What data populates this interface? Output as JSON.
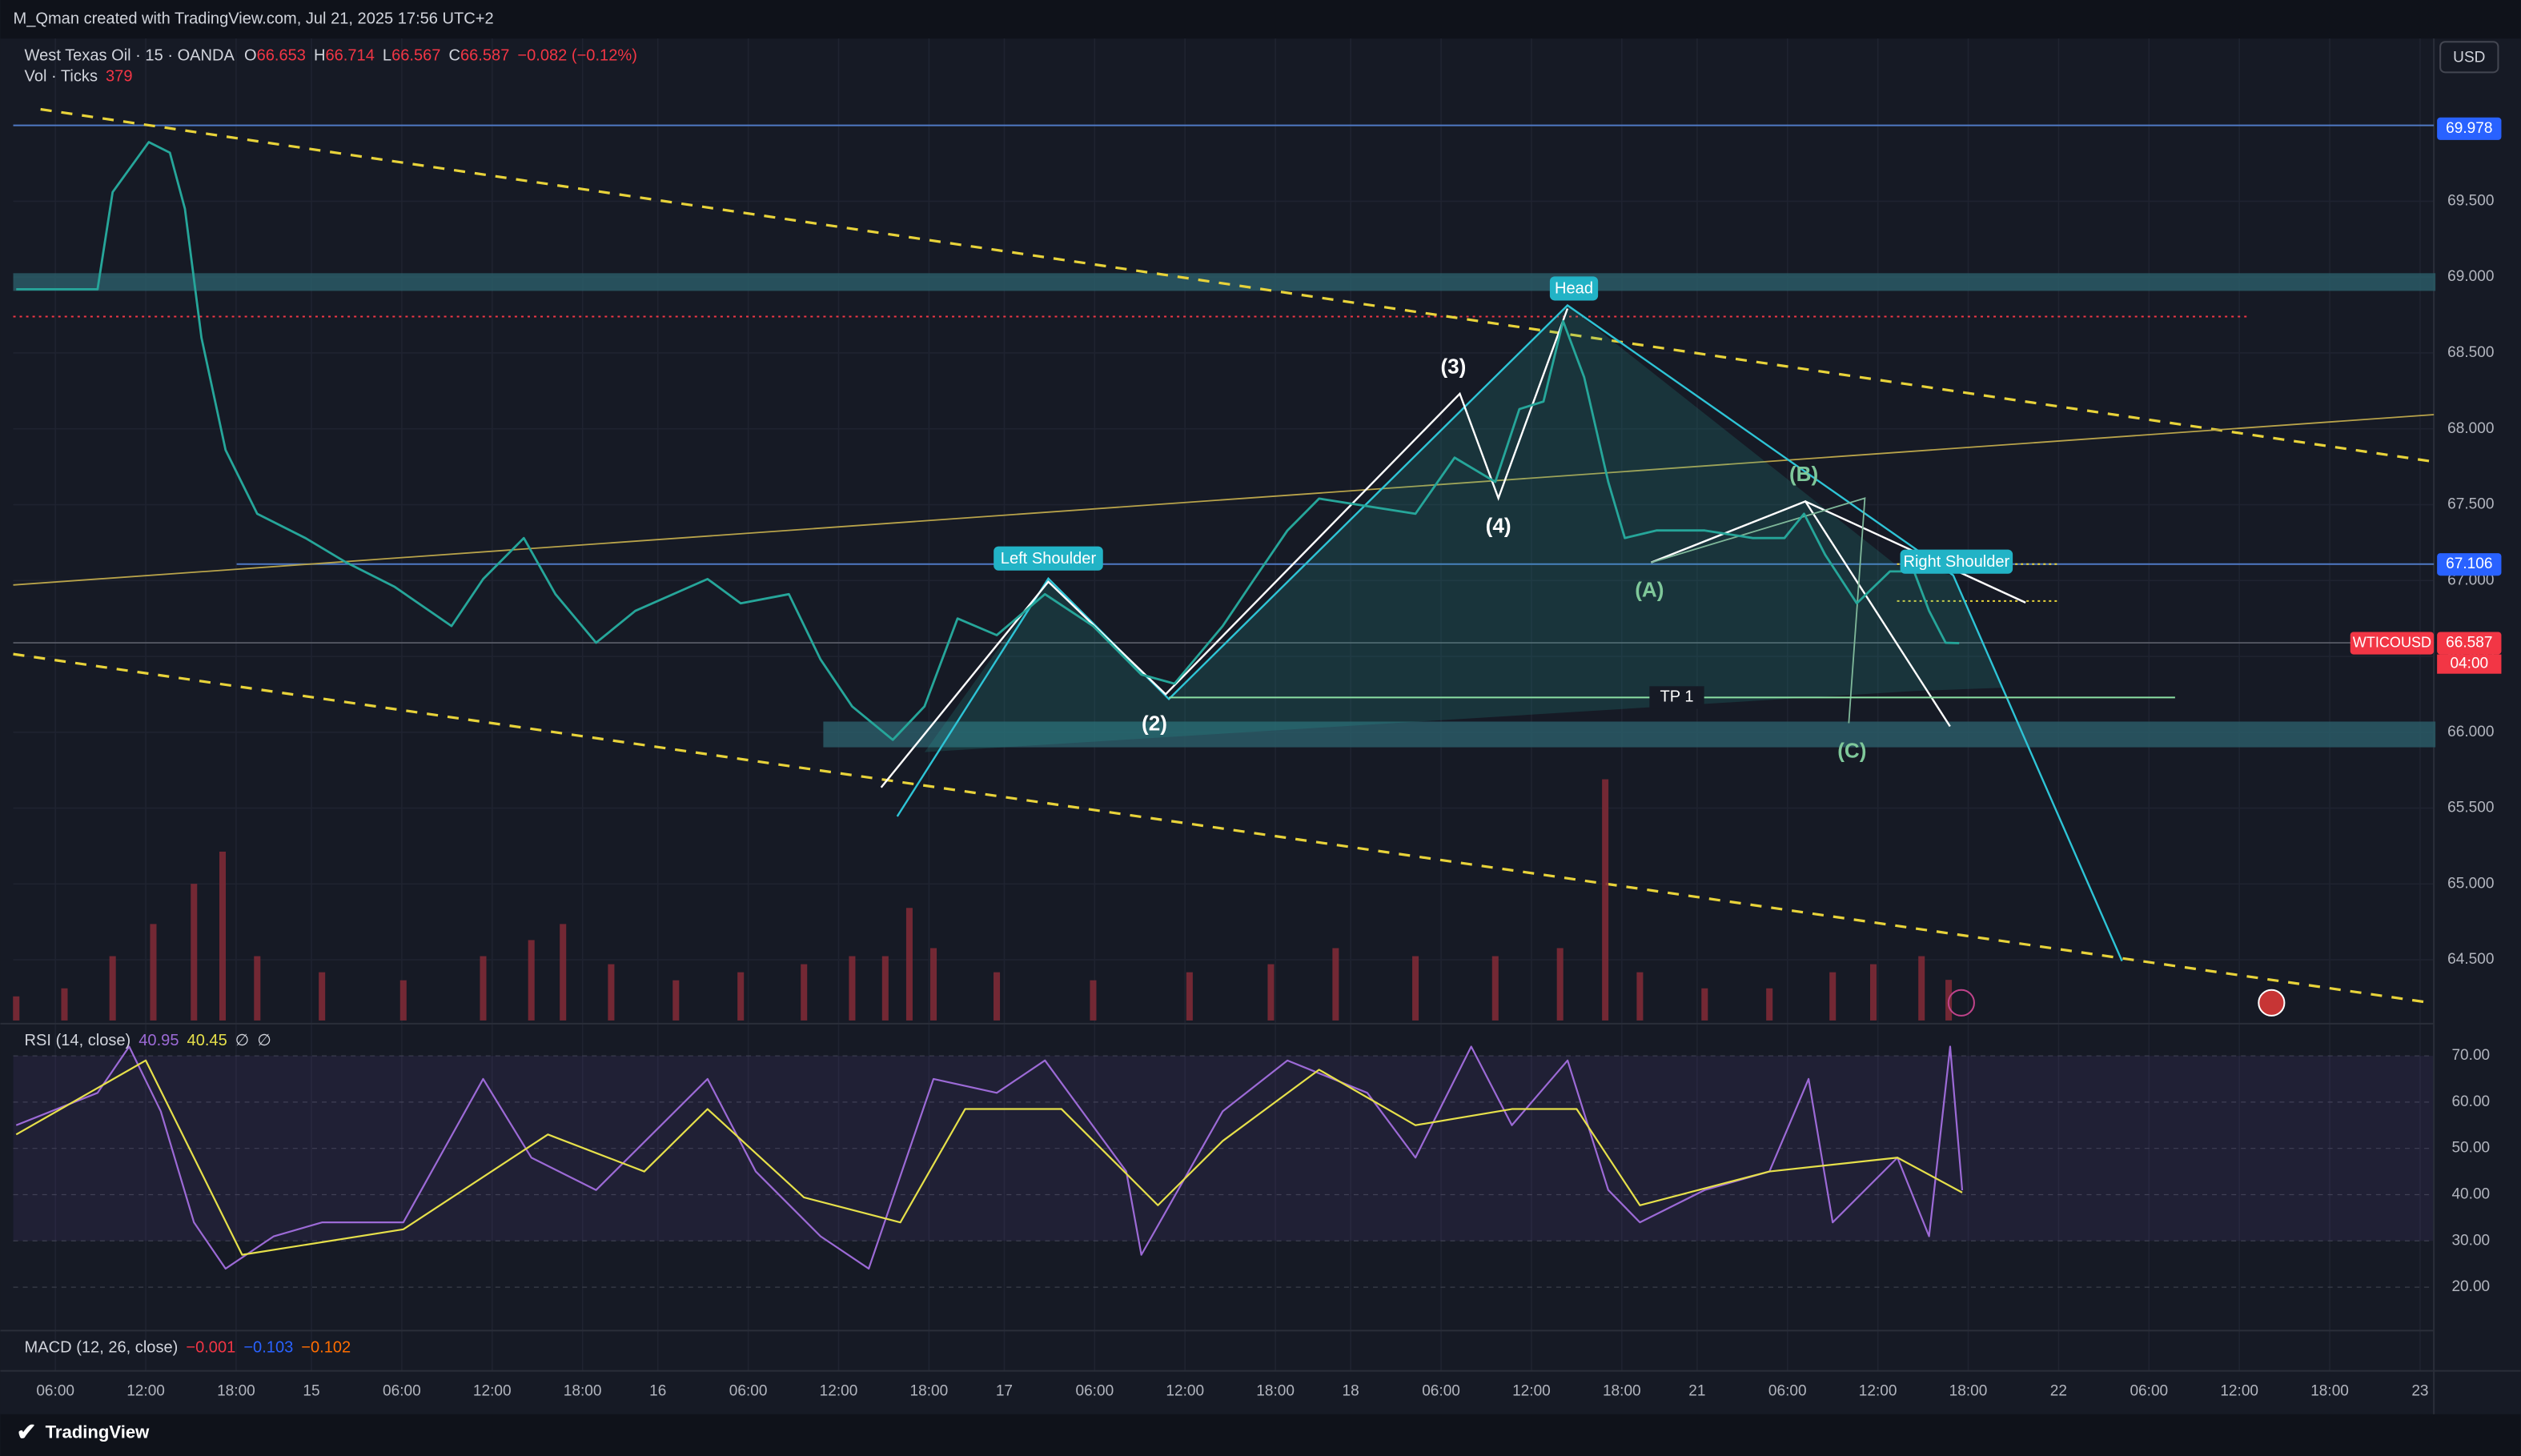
{
  "header": {
    "attribution": "M_Qman created with TradingView.com, Jul 21, 2025 17:56 UTC+2",
    "symbol": "West Texas Oil · 15 · OANDA",
    "ohlc": [
      {
        "label": "O",
        "value": "66.653"
      },
      {
        "label": "H",
        "value": "66.714"
      },
      {
        "label": "L",
        "value": "66.567"
      },
      {
        "label": "C",
        "value": "66.587"
      }
    ],
    "change": "−0.082 (−0.12%)",
    "volume_label": "Vol · Ticks",
    "volume_last": "379",
    "currency": "USD",
    "brand": "TradingView"
  },
  "chart_data": [
    {
      "type": "line",
      "x": [
        -2.6,
        2.8,
        3.8,
        6.2,
        7.6,
        8.6,
        9.7,
        11.3,
        13.4,
        16.6,
        19.3,
        22.5,
        26.3,
        28.4,
        31.1,
        33.2,
        35.9,
        38.5,
        43.3,
        45.5,
        48.7,
        50.8,
        52.9,
        55.6,
        57.7,
        59.9,
        62.5,
        65.7,
        68.9,
        72.1,
        74.3,
        77.5,
        79.6,
        81.8,
        83.9,
        87.1,
        90.3,
        92.9,
        95.6,
        97.2,
        98.8,
        100.1,
        101.5,
        103.1,
        104.2,
        106.3,
        109.5,
        112.7,
        114.8,
        116.1,
        117.5,
        119.6,
        121.8,
        123.4,
        124.4,
        125.5,
        126.4
      ],
      "series": [
        {
          "color": "#26a69a",
          "values": [
            68.92,
            68.92,
            69.56,
            69.89,
            69.82,
            69.45,
            68.6,
            67.86,
            67.44,
            67.28,
            67.12,
            66.96,
            66.7,
            67.01,
            67.28,
            66.91,
            66.59,
            66.8,
            67.01,
            66.85,
            66.91,
            66.48,
            66.17,
            65.95,
            66.17,
            66.75,
            66.64,
            66.91,
            66.7,
            66.38,
            66.32,
            66.7,
            67.01,
            67.33,
            67.54,
            67.49,
            67.44,
            67.81,
            67.65,
            68.13,
            68.18,
            68.71,
            68.34,
            67.65,
            67.28,
            67.33,
            67.33,
            67.28,
            67.28,
            67.44,
            67.17,
            66.85,
            67.06,
            67.06,
            66.8,
            66.59,
            66.587
          ]
        }
      ],
      "xlim": [
        -2.8,
        157.7
      ],
      "xticks": [
        {
          "value": 0,
          "label": "06:00"
        },
        {
          "value": 6,
          "label": "12:00"
        },
        {
          "value": 12,
          "label": "18:00"
        },
        {
          "value": 17,
          "label": "15"
        },
        {
          "value": 23,
          "label": "06:00"
        },
        {
          "value": 29,
          "label": "12:00"
        },
        {
          "value": 35,
          "label": "18:00"
        },
        {
          "value": 40,
          "label": "16"
        },
        {
          "value": 46,
          "label": "06:00"
        },
        {
          "value": 52,
          "label": "12:00"
        },
        {
          "value": 58,
          "label": "18:00"
        },
        {
          "value": 63,
          "label": "17"
        },
        {
          "value": 69,
          "label": "06:00"
        },
        {
          "value": 75,
          "label": "12:00"
        },
        {
          "value": 81,
          "label": "18:00"
        },
        {
          "value": 86,
          "label": "18"
        },
        {
          "value": 92,
          "label": "06:00"
        },
        {
          "value": 98,
          "label": "12:00"
        },
        {
          "value": 104,
          "label": "18:00"
        },
        {
          "value": 109,
          "label": "21"
        },
        {
          "value": 115,
          "label": "06:00"
        },
        {
          "value": 121,
          "label": "12:00"
        },
        {
          "value": 127,
          "label": "18:00"
        },
        {
          "value": 133,
          "label": "22"
        },
        {
          "value": 139,
          "label": "06:00"
        },
        {
          "value": 145,
          "label": "12:00"
        },
        {
          "value": 151,
          "label": "18:00"
        },
        {
          "value": 157,
          "label": "23"
        }
      ],
      "ylim": [
        64.1,
        70.53
      ],
      "yticks": [
        {
          "value": 64.5,
          "label": "64.500"
        },
        {
          "value": 65,
          "label": "65.000"
        },
        {
          "value": 65.5,
          "label": "65.500"
        },
        {
          "value": 66,
          "label": "66.000"
        },
        {
          "value": 66.5,
          "label": "66.500"
        },
        {
          "value": 67,
          "label": "67.000"
        },
        {
          "value": 67.5,
          "label": "67.500"
        },
        {
          "value": 68,
          "label": "68.000"
        },
        {
          "value": 68.5,
          "label": "68.500"
        },
        {
          "value": 69,
          "label": "69.000"
        },
        {
          "value": 69.5,
          "label": "69.500"
        }
      ],
      "grid": true,
      "price_labels": [
        {
          "value": 69.978,
          "label": "69.978",
          "color": "#2962ff"
        },
        {
          "value": 67.106,
          "label": "67.106",
          "color": "#2962ff"
        },
        {
          "value": 66.587,
          "label": "66.587",
          "color": "#f23645"
        }
      ],
      "symbol_badge": "WTICOUSD",
      "countdown": "04:00",
      "annotations": [
        "Head",
        "Left Shoulder",
        "Right Shoulder",
        "(3)",
        "(4)",
        "(2)",
        "(A)",
        "(B)",
        "(C)",
        "TP 1"
      ]
    },
    {
      "type": "bar",
      "color": "#7d2a36",
      "x": [
        -2.6,
        0.6,
        3.8,
        6.5,
        9.2,
        11.1,
        13.4,
        17.7,
        23.1,
        28.4,
        31.6,
        33.7,
        36.9,
        41.2,
        45.5,
        49.7,
        52.9,
        55.1,
        56.7,
        58.3,
        62.5,
        68.9,
        75.3,
        80.7,
        85.0,
        90.3,
        95.6,
        99.9,
        102.9,
        105.2,
        109.5,
        113.8,
        118.0,
        120.7,
        123.9,
        125.7
      ],
      "values": [
        225,
        300,
        600,
        900,
        1275,
        1575,
        600,
        450,
        375,
        600,
        750,
        900,
        525,
        375,
        450,
        525,
        600,
        600,
        1050,
        675,
        450,
        375,
        450,
        525,
        675,
        600,
        600,
        675,
        2250,
        450,
        300,
        300,
        450,
        525,
        600,
        379
      ],
      "ylim": [
        0,
        9100
      ]
    },
    {
      "type": "line",
      "title": "RSI (14, close)",
      "header_values": [
        "40.95",
        "40.45",
        "∅",
        "∅"
      ],
      "series": [
        {
          "color": "#9c6ad6",
          "x": [
            -2.6,
            2.8,
            4.9,
            7.0,
            9.2,
            11.3,
            14.5,
            17.7,
            23.1,
            28.4,
            31.6,
            35.9,
            43.3,
            46.5,
            50.8,
            54.0,
            58.3,
            62.5,
            65.7,
            71.1,
            72.1,
            77.5,
            81.8,
            87.1,
            90.3,
            94.0,
            96.7,
            100.4,
            103.1,
            105.2,
            109.5,
            113.8,
            116.4,
            118.0,
            122.3,
            124.4,
            125.8,
            126.6
          ],
          "values": [
            55,
            62,
            72,
            58,
            34,
            24,
            31,
            34,
            34,
            65,
            48,
            41,
            65,
            45,
            31,
            24,
            65,
            62,
            69,
            45,
            27,
            58,
            69,
            62,
            48,
            72,
            55,
            69,
            41,
            34,
            41,
            45,
            65,
            34,
            48,
            31,
            72,
            40.95
          ]
        },
        {
          "color": "#e6e04a",
          "x": [
            -2.6,
            6.0,
            12.4,
            23.1,
            32.7,
            39.1,
            43.3,
            49.7,
            56.1,
            60.4,
            66.8,
            73.2,
            77.5,
            83.9,
            90.3,
            96.7,
            101.0,
            105.2,
            113.8,
            122.3,
            126.6
          ],
          "values": [
            53,
            69,
            27,
            32.5,
            53,
            45,
            58.5,
            39.4,
            34,
            58.5,
            58.5,
            37.7,
            51.6,
            67,
            55,
            58.5,
            58.5,
            37.7,
            45,
            48,
            40.45
          ]
        }
      ],
      "ylim": [
        11.3,
        75.9
      ],
      "yticks": [
        {
          "value": 20,
          "label": "20.00"
        },
        {
          "value": 30,
          "label": "30.00"
        },
        {
          "value": 40,
          "label": "40.00"
        },
        {
          "value": 50,
          "label": "50.00"
        },
        {
          "value": 60,
          "label": "60.00"
        },
        {
          "value": 70,
          "label": "70.00"
        }
      ],
      "band": [
        30,
        70
      ]
    }
  ],
  "macd": {
    "title": "MACD (12, 26, close)",
    "values": [
      {
        "text": "−0.001",
        "color": "#f23645"
      },
      {
        "text": "−0.103",
        "color": "#2962ff"
      },
      {
        "text": "−0.102",
        "color": "#ff6d00"
      }
    ]
  }
}
